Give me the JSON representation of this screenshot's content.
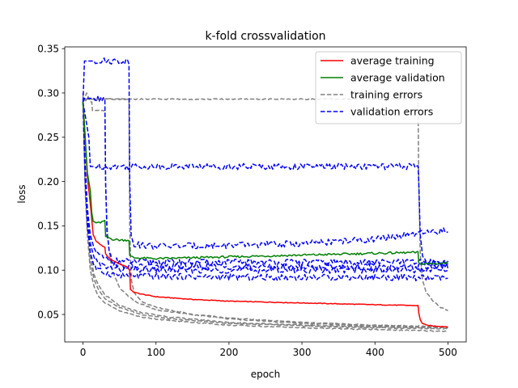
{
  "chart_data": {
    "type": "line",
    "title": "k-fold crossvalidation",
    "xlabel": "epoch",
    "ylabel": "loss",
    "xlim": [
      -25,
      525
    ],
    "ylim": [
      0.019,
      0.352
    ],
    "xticks": [
      0,
      100,
      200,
      300,
      400,
      500
    ],
    "yticks": [
      0.05,
      0.1,
      0.15,
      0.2,
      0.25,
      0.3,
      0.35
    ],
    "ytick_labels": [
      "0.05",
      "0.10",
      "0.15",
      "0.20",
      "0.25",
      "0.30",
      "0.35"
    ],
    "grid": false,
    "legend_position": "top-right",
    "legend": [
      {
        "label": "average training",
        "color": "#ff0000",
        "style": "solid"
      },
      {
        "label": "average validation",
        "color": "#008000",
        "style": "solid"
      },
      {
        "label": "training errors",
        "color": "#808080",
        "style": "dashed"
      },
      {
        "label": "validation errors",
        "color": "#0000ff",
        "style": "dashed"
      }
    ],
    "series": [
      {
        "name": "average training",
        "color": "#ff0000",
        "style": "solid",
        "x": [
          0,
          3,
          6,
          10,
          14,
          18,
          22,
          27,
          30,
          31,
          35,
          40,
          50,
          60,
          64,
          65,
          70,
          80,
          100,
          150,
          200,
          250,
          300,
          350,
          400,
          459,
          460,
          462,
          465,
          470,
          480,
          500
        ],
        "y": [
          0.29,
          0.25,
          0.205,
          0.175,
          0.14,
          0.133,
          0.13,
          0.127,
          0.126,
          0.118,
          0.114,
          0.111,
          0.107,
          0.104,
          0.1,
          0.078,
          0.075,
          0.073,
          0.07,
          0.067,
          0.065,
          0.064,
          0.063,
          0.062,
          0.061,
          0.06,
          0.052,
          0.044,
          0.04,
          0.038,
          0.037,
          0.036
        ]
      },
      {
        "name": "average validation",
        "color": "#008000",
        "style": "solid",
        "x": [
          0,
          3,
          6,
          10,
          12,
          14,
          20,
          28,
          30,
          31,
          40,
          50,
          63,
          64,
          70,
          100,
          150,
          200,
          250,
          300,
          350,
          400,
          459,
          460,
          465,
          500
        ],
        "y": [
          0.29,
          0.25,
          0.21,
          0.19,
          0.165,
          0.155,
          0.153,
          0.155,
          0.155,
          0.138,
          0.135,
          0.134,
          0.134,
          0.116,
          0.114,
          0.113,
          0.114,
          0.115,
          0.116,
          0.117,
          0.118,
          0.119,
          0.12,
          0.108,
          0.107,
          0.108
        ]
      },
      {
        "name": "training errors",
        "color": "#808080",
        "style": "dashed",
        "x": [
          0,
          3,
          6,
          10,
          15,
          20,
          30,
          50,
          80,
          120,
          200,
          300,
          400,
          500
        ],
        "y": [
          0.29,
          0.2,
          0.15,
          0.11,
          0.09,
          0.08,
          0.068,
          0.058,
          0.05,
          0.045,
          0.04,
          0.037,
          0.035,
          0.034
        ]
      },
      {
        "name": "training errors",
        "color": "#808080",
        "style": "dashed",
        "x": [
          0,
          3,
          6,
          10,
          15,
          20,
          30,
          50,
          80,
          120,
          200,
          300,
          400,
          500
        ],
        "y": [
          0.3,
          0.19,
          0.14,
          0.1,
          0.082,
          0.072,
          0.063,
          0.054,
          0.047,
          0.043,
          0.038,
          0.035,
          0.033,
          0.031
        ]
      },
      {
        "name": "training errors",
        "color": "#808080",
        "style": "dashed",
        "x": [
          0,
          3,
          6,
          10,
          15,
          20,
          30,
          50,
          80,
          120,
          200,
          300,
          400,
          500
        ],
        "y": [
          0.29,
          0.21,
          0.16,
          0.12,
          0.095,
          0.085,
          0.072,
          0.06,
          0.052,
          0.047,
          0.041,
          0.038,
          0.036,
          0.035
        ]
      },
      {
        "name": "training errors",
        "color": "#808080",
        "style": "dashed",
        "x": [
          0,
          5,
          10,
          12,
          13,
          30,
          31,
          33,
          36,
          40,
          50,
          70,
          100,
          200,
          300,
          400,
          500
        ],
        "y": [
          0.29,
          0.3,
          0.29,
          0.29,
          0.28,
          0.28,
          0.2,
          0.15,
          0.12,
          0.1,
          0.08,
          0.065,
          0.055,
          0.045,
          0.04,
          0.037,
          0.035
        ]
      },
      {
        "name": "training errors",
        "color": "#808080",
        "style": "dashed",
        "x": [
          0,
          5,
          10,
          20,
          30,
          63,
          64,
          66,
          70,
          80,
          100,
          150,
          200,
          300,
          400,
          500
        ],
        "y": [
          0.29,
          0.295,
          0.293,
          0.293,
          0.293,
          0.293,
          0.15,
          0.09,
          0.075,
          0.065,
          0.058,
          0.05,
          0.046,
          0.041,
          0.038,
          0.036
        ]
      },
      {
        "name": "training errors",
        "color": "#808080",
        "style": "dashed",
        "x": [
          0,
          2,
          3,
          5,
          8,
          12,
          20,
          50,
          100,
          200,
          300,
          400,
          459,
          460,
          462,
          465,
          470,
          480,
          490,
          500
        ],
        "y": [
          0.29,
          0.293,
          0.29,
          0.293,
          0.293,
          0.293,
          0.293,
          0.293,
          0.293,
          0.293,
          0.293,
          0.293,
          0.293,
          0.2,
          0.12,
          0.09,
          0.075,
          0.065,
          0.058,
          0.054
        ]
      },
      {
        "name": "validation errors",
        "color": "#0000ff",
        "style": "dashed",
        "x": [
          0,
          3,
          6,
          10,
          15,
          20,
          30,
          50,
          100,
          200,
          300,
          400,
          500
        ],
        "y": [
          0.29,
          0.2,
          0.15,
          0.12,
          0.105,
          0.1,
          0.097,
          0.094,
          0.093,
          0.092,
          0.092,
          0.092,
          0.091
        ]
      },
      {
        "name": "validation errors",
        "color": "#0000ff",
        "style": "dashed",
        "x": [
          0,
          3,
          6,
          10,
          15,
          20,
          30,
          50,
          100,
          200,
          300,
          400,
          500
        ],
        "y": [
          0.29,
          0.21,
          0.16,
          0.13,
          0.115,
          0.108,
          0.104,
          0.101,
          0.1,
          0.1,
          0.1,
          0.1,
          0.1
        ]
      },
      {
        "name": "validation errors",
        "color": "#0000ff",
        "style": "dashed",
        "x": [
          0,
          3,
          6,
          10,
          15,
          20,
          30,
          50,
          100,
          200,
          300,
          400,
          500
        ],
        "y": [
          0.29,
          0.22,
          0.17,
          0.14,
          0.125,
          0.118,
          0.113,
          0.11,
          0.109,
          0.109,
          0.109,
          0.109,
          0.109
        ]
      },
      {
        "name": "validation errors",
        "color": "#0000ff",
        "style": "dashed",
        "x": [
          0,
          2,
          3,
          30,
          31,
          33,
          36,
          40,
          50,
          100,
          200,
          300,
          400,
          500
        ],
        "y": [
          0.29,
          0.294,
          0.294,
          0.294,
          0.2,
          0.14,
          0.12,
          0.11,
          0.105,
          0.104,
          0.104,
          0.104,
          0.104,
          0.104
        ]
      },
      {
        "name": "validation errors",
        "color": "#0000ff",
        "style": "dashed",
        "x": [
          0,
          2,
          3,
          63,
          64,
          66,
          70,
          80,
          100,
          200,
          300,
          400,
          500
        ],
        "y": [
          0.29,
          0.336,
          0.336,
          0.336,
          0.2,
          0.14,
          0.13,
          0.128,
          0.127,
          0.128,
          0.13,
          0.135,
          0.145
        ]
      },
      {
        "name": "validation errors",
        "color": "#0000ff",
        "style": "dashed",
        "x": [
          0,
          8,
          10,
          12,
          14,
          20,
          50,
          100,
          200,
          300,
          400,
          459,
          460,
          462,
          465,
          470,
          480,
          500
        ],
        "y": [
          0.29,
          0.25,
          0.217,
          0.217,
          0.217,
          0.217,
          0.217,
          0.217,
          0.217,
          0.217,
          0.217,
          0.217,
          0.2,
          0.14,
          0.118,
          0.11,
          0.108,
          0.107
        ]
      }
    ]
  }
}
